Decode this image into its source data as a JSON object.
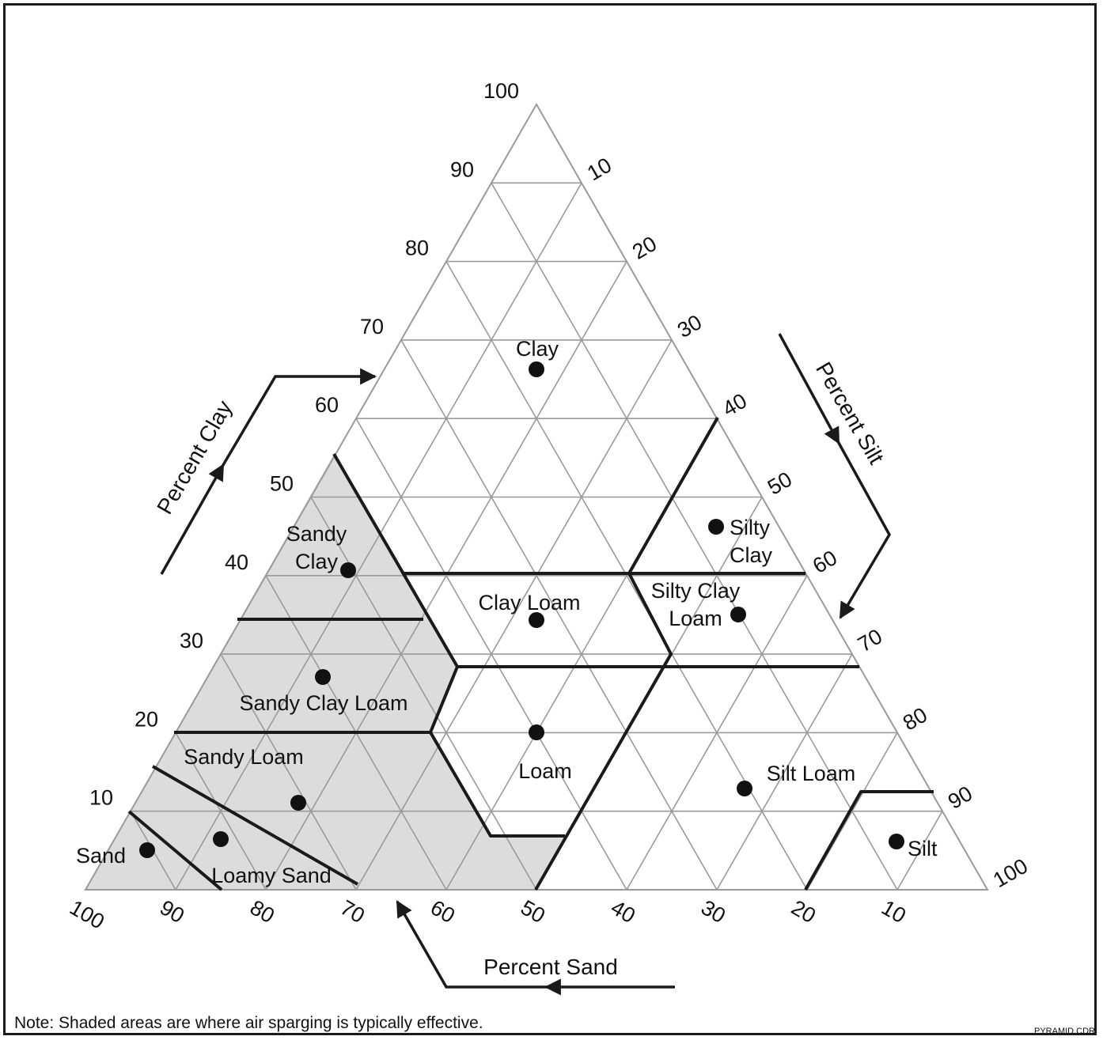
{
  "axes": {
    "clay": {
      "title": "Percent Clay",
      "ticks": [
        "10",
        "20",
        "30",
        "40",
        "50",
        "60",
        "70",
        "80",
        "90",
        "100"
      ]
    },
    "silt": {
      "title": "Percent Silt",
      "ticks": [
        "10",
        "20",
        "30",
        "40",
        "50",
        "60",
        "70",
        "80",
        "90",
        "100"
      ]
    },
    "sand": {
      "title": "Percent Sand",
      "ticks": [
        "100",
        "90",
        "80",
        "70",
        "60",
        "50",
        "40",
        "30",
        "20",
        "10"
      ]
    }
  },
  "zones": {
    "clay": "Clay",
    "sandy_clay_1": "Sandy",
    "sandy_clay_2": "Clay",
    "silty_clay_1": "Silty",
    "silty_clay_2": "Clay",
    "clay_loam": "Clay Loam",
    "silty_clay_loam_1": "Silty Clay",
    "silty_clay_loam_2": "Loam",
    "sandy_clay_loam": "Sandy Clay Loam",
    "sandy_loam": "Sandy Loam",
    "loam": "Loam",
    "silt_loam": "Silt Loam",
    "sand": "Sand",
    "loamy_sand": "Loamy Sand",
    "silt": "Silt"
  },
  "note": "Note: Shaded areas are where air sparging is typically effective.",
  "file_code": "PYRAMID.CDR",
  "colors": {
    "shaded": "#dcdcdc",
    "grid": "#9a9a9a",
    "boundary": "#1a1a1a",
    "marker": "#111111"
  }
}
